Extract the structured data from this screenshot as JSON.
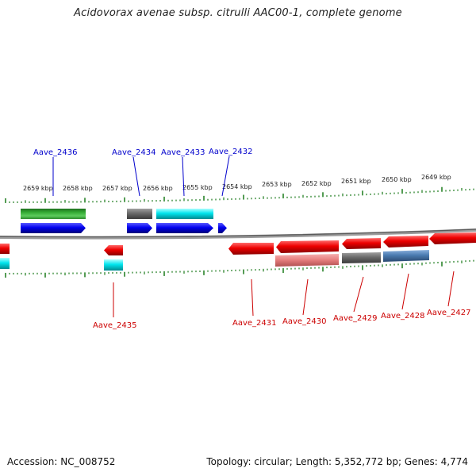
{
  "title": "Acidovorax avenae subsp. citrulli AAC00-1, complete genome",
  "footer": {
    "accession": "Accession: NC_008752",
    "summary": "Topology: circular; Length: 5,352,772 bp; Genes: 4,774"
  },
  "colors": {
    "forward_label": "#0000cc",
    "reverse_label": "#cc0000",
    "backbone": "#808080",
    "ticks": "#1a7a1a",
    "forward_gene": "#0000ee",
    "reverse_gene": "#ee0000",
    "cyan_feature": "#00e5ee",
    "gray_feature": "#6a6a6a",
    "green_feature": "#33aa33",
    "pink_feature": "#e88080",
    "steelblue_feature": "#4a7ab0"
  },
  "scale_labels": [
    {
      "text": "2659 kbp"
    },
    {
      "text": "2658 kbp"
    },
    {
      "text": "2657 kbp"
    },
    {
      "text": "2656 kbp"
    },
    {
      "text": "2655 kbp"
    },
    {
      "text": "2654 kbp"
    },
    {
      "text": "2653 kbp"
    },
    {
      "text": "2652 kbp"
    },
    {
      "text": "2651 kbp"
    },
    {
      "text": "2650 kbp"
    },
    {
      "text": "2649 kbp"
    }
  ],
  "forward_labels": [
    "Aave_2436",
    "Aave_2434",
    "Aave_2433",
    "Aave_2432"
  ],
  "reverse_labels": [
    "Aave_2435",
    "Aave_2431",
    "Aave_2430",
    "Aave_2429",
    "Aave_2428",
    "Aave_2427"
  ]
}
